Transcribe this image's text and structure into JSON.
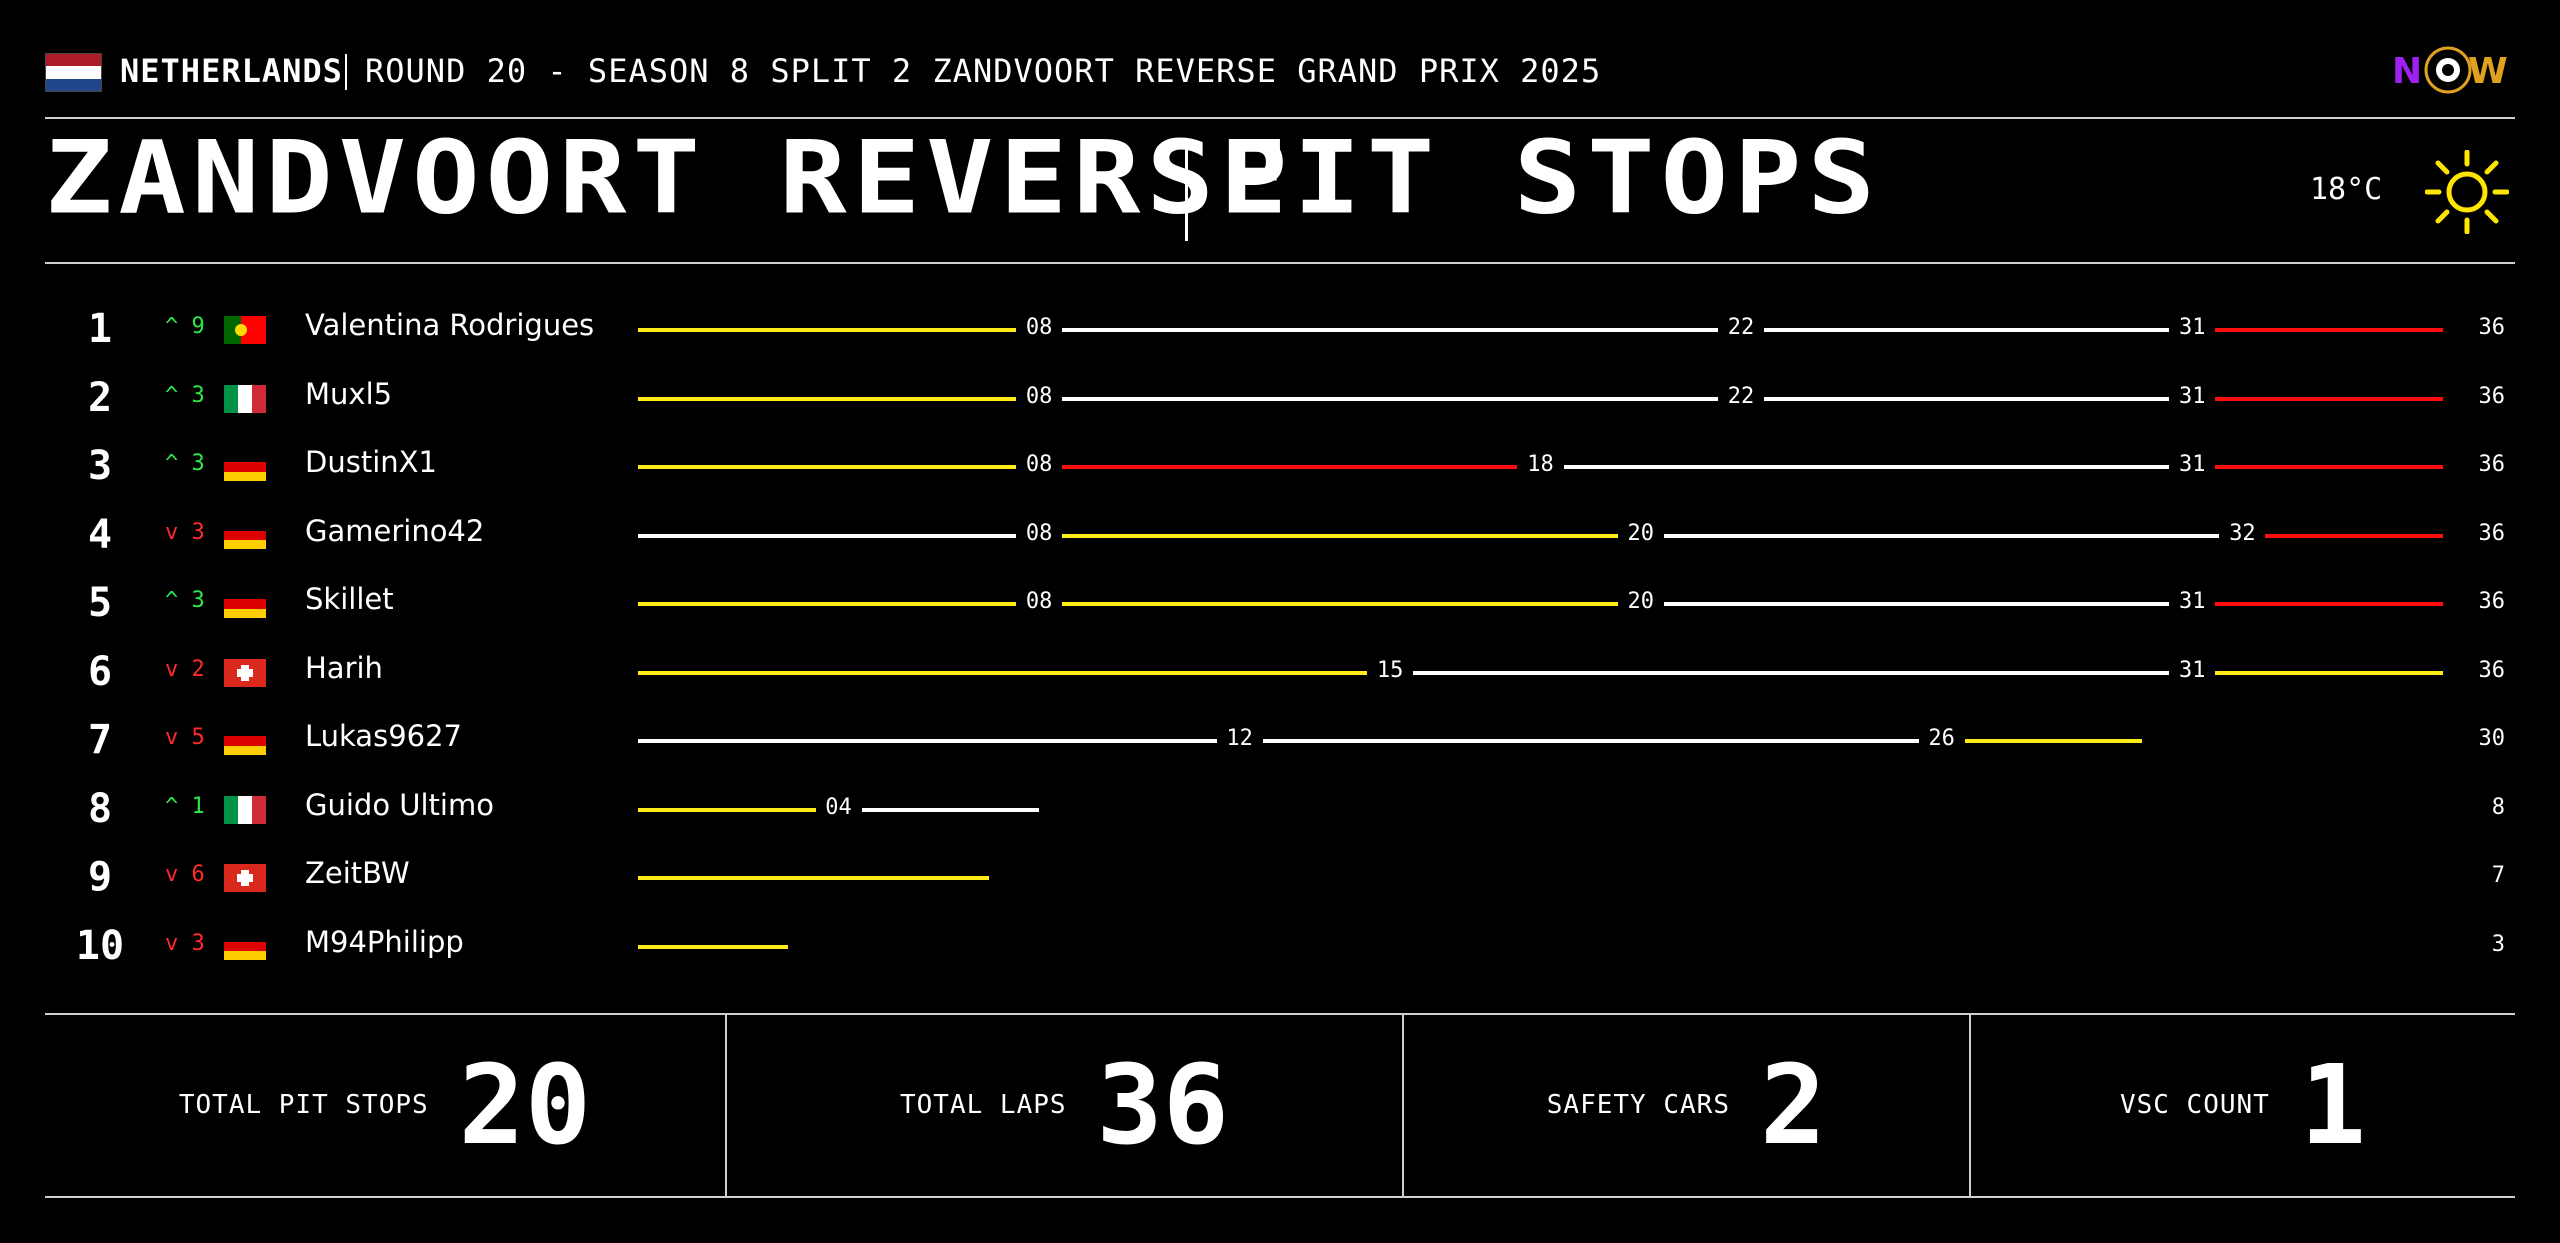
{
  "header": {
    "country": "NETHERLANDS",
    "round": "ROUND 20 - SEASON 8 SPLIT 2 ZANDVOORT REVERSE GRAND PRIX 2025",
    "brand": "NOW",
    "flag_colors": [
      "#ae1c28",
      "#ffffff",
      "#21468b"
    ]
  },
  "title": {
    "main": "ZANDVOORT REVERSE",
    "sub": "PIT STOPS",
    "temperature": "18°C",
    "weather_icon": "sun-icon"
  },
  "compound_colors": {
    "soft": "#ff0d0d",
    "medium": "#ffec17",
    "hard": "#ffffff"
  },
  "chart_data": {
    "type": "bar",
    "total_race_laps": 36,
    "drivers": [
      {
        "pos": "1",
        "change": "9",
        "dir": "up",
        "flag": "PT",
        "name": "Valentina Rodrigues",
        "total": "36",
        "stints": [
          {
            "compound": "medium",
            "end": 8
          },
          {
            "compound": "hard",
            "end": 22
          },
          {
            "compound": "hard",
            "end": 31
          },
          {
            "compound": "soft",
            "end": 36
          }
        ],
        "stop_labels": [
          "08",
          "22",
          "31"
        ]
      },
      {
        "pos": "2",
        "change": "3",
        "dir": "up",
        "flag": "IT",
        "name": "Muxl5",
        "total": "36",
        "stints": [
          {
            "compound": "medium",
            "end": 8
          },
          {
            "compound": "hard",
            "end": 22
          },
          {
            "compound": "hard",
            "end": 31
          },
          {
            "compound": "soft",
            "end": 36
          }
        ],
        "stop_labels": [
          "08",
          "22",
          "31"
        ]
      },
      {
        "pos": "3",
        "change": "3",
        "dir": "up",
        "flag": "DE",
        "name": "DustinX1",
        "total": "36",
        "stints": [
          {
            "compound": "medium",
            "end": 8
          },
          {
            "compound": "soft",
            "end": 18
          },
          {
            "compound": "hard",
            "end": 31
          },
          {
            "compound": "soft",
            "end": 36
          }
        ],
        "stop_labels": [
          "08",
          "18",
          "31"
        ]
      },
      {
        "pos": "4",
        "change": "3",
        "dir": "down",
        "flag": "DE",
        "name": "Gamerino42",
        "total": "36",
        "stints": [
          {
            "compound": "hard",
            "end": 8
          },
          {
            "compound": "medium",
            "end": 20
          },
          {
            "compound": "hard",
            "end": 32
          },
          {
            "compound": "soft",
            "end": 36
          }
        ],
        "stop_labels": [
          "08",
          "20",
          "32"
        ]
      },
      {
        "pos": "5",
        "change": "3",
        "dir": "up",
        "flag": "DE",
        "name": "Skillet",
        "total": "36",
        "stints": [
          {
            "compound": "medium",
            "end": 8
          },
          {
            "compound": "medium",
            "end": 20
          },
          {
            "compound": "hard",
            "end": 31
          },
          {
            "compound": "soft",
            "end": 36
          }
        ],
        "stop_labels": [
          "08",
          "20",
          "31"
        ]
      },
      {
        "pos": "6",
        "change": "2",
        "dir": "down",
        "flag": "CH",
        "name": "Harih",
        "total": "36",
        "stints": [
          {
            "compound": "medium",
            "end": 15
          },
          {
            "compound": "hard",
            "end": 31
          },
          {
            "compound": "medium",
            "end": 36
          }
        ],
        "stop_labels": [
          "15",
          "31"
        ]
      },
      {
        "pos": "7",
        "change": "5",
        "dir": "down",
        "flag": "DE",
        "name": "Lukas9627",
        "total": "30",
        "stints": [
          {
            "compound": "hard",
            "end": 12
          },
          {
            "compound": "hard",
            "end": 26
          },
          {
            "compound": "medium",
            "end": 30
          }
        ],
        "stop_labels": [
          "12",
          "26"
        ]
      },
      {
        "pos": "8",
        "change": "1",
        "dir": "up",
        "flag": "IT",
        "name": "Guido Ultimo",
        "total": "8",
        "stints": [
          {
            "compound": "medium",
            "end": 4
          },
          {
            "compound": "hard",
            "end": 8
          }
        ],
        "stop_labels": [
          "04"
        ]
      },
      {
        "pos": "9",
        "change": "6",
        "dir": "down",
        "flag": "CH",
        "name": "ZeitBW",
        "total": "7",
        "stints": [
          {
            "compound": "medium",
            "end": 7
          }
        ],
        "stop_labels": []
      },
      {
        "pos": "10",
        "change": "3",
        "dir": "down",
        "flag": "DE",
        "name": "M94Philipp",
        "total": "3",
        "stints": [
          {
            "compound": "medium",
            "end": 3
          }
        ],
        "stop_labels": []
      }
    ]
  },
  "stats": [
    {
      "label": "TOTAL PIT STOPS",
      "value": "20"
    },
    {
      "label": "TOTAL LAPS",
      "value": "36"
    },
    {
      "label": "SAFETY CARS",
      "value": "2"
    },
    {
      "label": "VSC COUNT",
      "value": "1"
    }
  ]
}
